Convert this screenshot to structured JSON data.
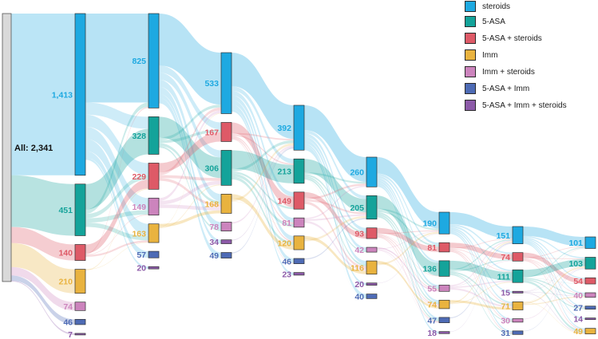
{
  "root": {
    "label": "All: 2,341",
    "value": 2341
  },
  "legend": [
    {
      "key": "steroids",
      "label": "steroids",
      "color": "#1ea9e1"
    },
    {
      "key": "asa",
      "label": "5-ASA",
      "color": "#14a39a"
    },
    {
      "key": "asa_steroids",
      "label": "5-ASA + steroids",
      "color": "#de5a67"
    },
    {
      "key": "imm",
      "label": "Imm",
      "color": "#e9b33f"
    },
    {
      "key": "imm_steroids",
      "label": "Imm + steroids",
      "color": "#cc84bd"
    },
    {
      "key": "asa_imm",
      "label": "5-ASA + Imm",
      "color": "#4e6bb5"
    },
    {
      "key": "asa_imm_steroids",
      "label": "5-ASA + Imm + steroids",
      "color": "#8c5aa8"
    }
  ],
  "columns": [
    [
      {
        "key": "steroids",
        "value": 1413,
        "label": "1,413"
      },
      {
        "key": "asa",
        "value": 451,
        "label": "451"
      },
      {
        "key": "asa_steroids",
        "value": 140,
        "label": "140"
      },
      {
        "key": "imm",
        "value": 210,
        "label": "210"
      },
      {
        "key": "imm_steroids",
        "value": 74,
        "label": "74"
      },
      {
        "key": "asa_imm",
        "value": 46,
        "label": "46"
      },
      {
        "key": "asa_imm_steroids",
        "value": 7,
        "label": "7"
      }
    ],
    [
      {
        "key": "steroids",
        "value": 825,
        "label": "825"
      },
      {
        "key": "asa",
        "value": 328,
        "label": "328"
      },
      {
        "key": "asa_steroids",
        "value": 229,
        "label": "229"
      },
      {
        "key": "imm_steroids",
        "value": 149,
        "label": "149"
      },
      {
        "key": "imm",
        "value": 163,
        "label": "163"
      },
      {
        "key": "asa_imm",
        "value": 57,
        "label": "57"
      },
      {
        "key": "asa_imm_steroids",
        "value": 20,
        "label": "20"
      }
    ],
    [
      {
        "key": "steroids",
        "value": 533,
        "label": "533"
      },
      {
        "key": "asa_steroids",
        "value": 167,
        "label": "167"
      },
      {
        "key": "asa",
        "value": 306,
        "label": "306"
      },
      {
        "key": "imm",
        "value": 168,
        "label": "168"
      },
      {
        "key": "imm_steroids",
        "value": 78,
        "label": "78"
      },
      {
        "key": "asa_imm_steroids",
        "value": 34,
        "label": "34"
      },
      {
        "key": "asa_imm",
        "value": 49,
        "label": "49"
      }
    ],
    [
      {
        "key": "steroids",
        "value": 392,
        "label": "392"
      },
      {
        "key": "asa",
        "value": 213,
        "label": "213"
      },
      {
        "key": "asa_steroids",
        "value": 149,
        "label": "149"
      },
      {
        "key": "imm_steroids",
        "value": 81,
        "label": "81"
      },
      {
        "key": "imm",
        "value": 120,
        "label": "120"
      },
      {
        "key": "asa_imm",
        "value": 46,
        "label": "46"
      },
      {
        "key": "asa_imm_steroids",
        "value": 23,
        "label": "23"
      }
    ],
    [
      {
        "key": "steroids",
        "value": 260,
        "label": "260"
      },
      {
        "key": "asa",
        "value": 205,
        "label": "205"
      },
      {
        "key": "asa_steroids",
        "value": 93,
        "label": "93"
      },
      {
        "key": "imm_steroids",
        "value": 42,
        "label": "42"
      },
      {
        "key": "imm",
        "value": 116,
        "label": "116"
      },
      {
        "key": "asa_imm_steroids",
        "value": 20,
        "label": "20"
      },
      {
        "key": "asa_imm",
        "value": 40,
        "label": "40"
      }
    ],
    [
      {
        "key": "steroids",
        "value": 190,
        "label": "190"
      },
      {
        "key": "asa_steroids",
        "value": 81,
        "label": "81"
      },
      {
        "key": "asa",
        "value": 136,
        "label": "136"
      },
      {
        "key": "imm_steroids",
        "value": 55,
        "label": "55"
      },
      {
        "key": "imm",
        "value": 74,
        "label": "74"
      },
      {
        "key": "asa_imm",
        "value": 47,
        "label": "47"
      },
      {
        "key": "asa_imm_steroids",
        "value": 18,
        "label": "18"
      }
    ],
    [
      {
        "key": "steroids",
        "value": 151,
        "label": "151"
      },
      {
        "key": "asa_steroids",
        "value": 74,
        "label": "74"
      },
      {
        "key": "asa",
        "value": 111,
        "label": "111"
      },
      {
        "key": "asa_imm_steroids",
        "value": 15,
        "label": "15"
      },
      {
        "key": "imm",
        "value": 71,
        "label": "71"
      },
      {
        "key": "imm_steroids",
        "value": 30,
        "label": "30"
      },
      {
        "key": "asa_imm",
        "value": 31,
        "label": "31"
      }
    ],
    [
      {
        "key": "steroids",
        "value": 101,
        "label": "101"
      },
      {
        "key": "asa",
        "value": 103,
        "label": "103"
      },
      {
        "key": "asa_steroids",
        "value": 54,
        "label": "54"
      },
      {
        "key": "imm_steroids",
        "value": 40,
        "label": "40"
      },
      {
        "key": "asa_imm",
        "value": 27,
        "label": "27"
      },
      {
        "key": "asa_imm_steroids",
        "value": 14,
        "label": "14"
      },
      {
        "key": "imm",
        "value": 49,
        "label": "49"
      }
    ]
  ]
}
